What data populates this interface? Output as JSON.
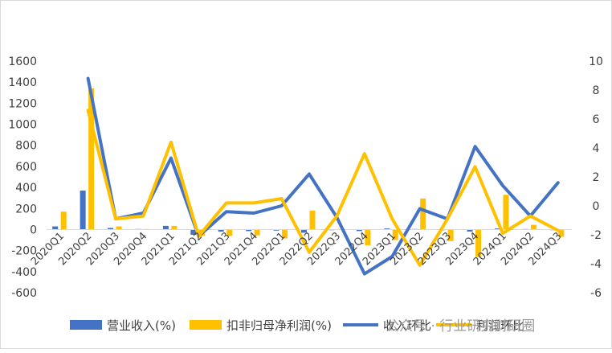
{
  "chart_data": {
    "type": "bar",
    "categories": [
      "2020Q1",
      "2020Q2",
      "2020Q3",
      "2020Q4",
      "2021Q1",
      "2021Q2",
      "2021Q3",
      "2021Q4",
      "2022Q1",
      "2022Q2",
      "2022Q3",
      "2022Q4",
      "2023Q1",
      "2023Q2",
      "2023Q3",
      "2023Q4",
      "2024Q1",
      "2024Q2",
      "2024Q3"
    ],
    "left_axis": {
      "ylim": [
        -600,
        1600
      ],
      "ticks": [
        1600,
        1400,
        1200,
        1000,
        800,
        600,
        400,
        200,
        0,
        -200,
        -400,
        -600
      ]
    },
    "right_axis": {
      "ylim": [
        -6,
        10
      ],
      "ticks": [
        10,
        8,
        6,
        4,
        2,
        0,
        -2,
        -4,
        -6
      ]
    },
    "series": [
      {
        "name": "营业收入(%)",
        "kind": "bar",
        "axis": "left",
        "color": "#4472C4",
        "values": [
          30,
          370,
          15,
          5,
          35,
          -50,
          -20,
          -15,
          -10,
          -30,
          -5,
          -15,
          10,
          5,
          0,
          -20,
          10,
          5,
          0
        ]
      },
      {
        "name": "扣非归母净利润(%)",
        "kind": "bar",
        "axis": "left",
        "color": "#FFC000",
        "values": [
          170,
          1340,
          30,
          5,
          35,
          -60,
          -60,
          -55,
          -85,
          180,
          5,
          -150,
          -100,
          295,
          -110,
          -260,
          330,
          45,
          -70
        ]
      },
      {
        "name": "收入环比",
        "kind": "line",
        "axis": "right",
        "color": "#4472C4",
        "values": [
          null,
          8.8,
          -0.9,
          -0.5,
          3.3,
          -2.1,
          -0.4,
          -0.5,
          0.0,
          2.2,
          -0.8,
          -4.7,
          -3.5,
          -0.2,
          -0.9,
          4.1,
          1.4,
          -0.7,
          1.6
        ]
      },
      {
        "name": "利润环比",
        "kind": "line",
        "axis": "right",
        "color": "#FFC000",
        "values": [
          null,
          6.6,
          -0.9,
          -0.7,
          4.4,
          -2.1,
          0.2,
          0.2,
          0.5,
          -3.2,
          -0.7,
          3.6,
          -0.9,
          -4.1,
          -0.9,
          2.7,
          -1.9,
          -0.7,
          -1.7
        ]
      }
    ],
    "legend": {
      "placement": "bottom"
    },
    "grid": false
  },
  "watermark": "公众号 · 行业研究财研圈"
}
